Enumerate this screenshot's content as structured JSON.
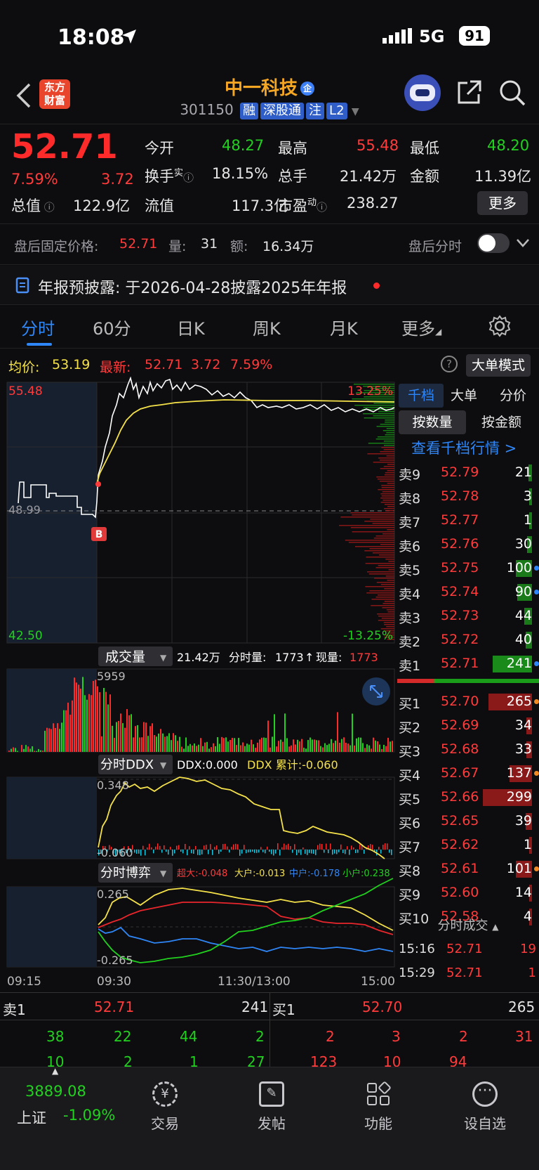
{
  "status_bar": {
    "time": "18:08",
    "network": "5G",
    "battery": "91"
  },
  "header": {
    "logo_text_1": "东方",
    "logo_text_2": "财富",
    "stock_name": "中一科技",
    "badge": "企",
    "code": "301150",
    "tags": [
      "融",
      "深股通",
      "注",
      "L2"
    ]
  },
  "quote": {
    "price": "52.71",
    "change_pct": "7.59%",
    "change": "3.72",
    "open_label": "今开",
    "open": "48.27",
    "high_label": "最高",
    "high": "55.48",
    "low_label": "最低",
    "low": "48.20",
    "turnover_label": "换手",
    "turnover_sup": "实",
    "turnover": "18.15%",
    "vol_label": "总手",
    "vol": "21.42万",
    "amount_label": "金额",
    "amount": "11.39亿",
    "mktcap_label": "总值",
    "mktcap": "122.9亿",
    "float_label": "流值",
    "float": "117.3亿",
    "pe_label": "市盈",
    "pe_sup": "动",
    "pe": "238.27",
    "more": "更多"
  },
  "after_hours": {
    "label": "盘后固定价格:",
    "price": "52.71",
    "qty_label": "量:",
    "qty": "31",
    "amt_label": "额:",
    "amt": "16.34万",
    "toggle_label": "盘后分时"
  },
  "notice": {
    "text": "年报预披露: 于2026-04-28披露2025年年报"
  },
  "tabs": [
    "分时",
    "60分",
    "日K",
    "周K",
    "月K",
    "更多"
  ],
  "info_line": {
    "avg_label": "均价:",
    "avg": "53.19",
    "latest_label": "最新:",
    "latest": "52.71",
    "chg": "3.72",
    "pct": "7.59%",
    "mode": "大单模式"
  },
  "chart_labels": {
    "ymax": "55.48",
    "ymin": "42.50",
    "ymid": "48.99",
    "pct_up": "13.25%",
    "pct_dn": "-13.25%",
    "b_marker": "B",
    "vol_title": "成交量",
    "vol_info_total": "21.42万",
    "vol_info_min_label": "分时量:",
    "vol_info_min": "1773",
    "vol_info_cur_label": "现量:",
    "vol_info_cur": "1773",
    "vol_max": "5959",
    "ddx_title": "分时DDX",
    "ddx_info": "DDX:0.000",
    "ddx_cum": "DDX 累计:-0.060",
    "ddx_top": "0.348",
    "ddx_bot": "-0.060",
    "game_title": "分时博弈",
    "g_super": "超大:-0.048",
    "g_big": "大户:-0.013",
    "g_mid": "中户:-0.178",
    "g_small": "小户:0.238",
    "g_top": "0.265",
    "g_bot": "-0.265",
    "t1": "09:15",
    "t2": "09:30",
    "t3": "11:30/13:00",
    "t4": "15:00"
  },
  "right_panel": {
    "tabs": [
      "千档",
      "大单",
      "分价"
    ],
    "sub": [
      "按数量",
      "按金额"
    ],
    "link": "查看千档行情 >"
  },
  "order_book": [
    {
      "label": "卖9",
      "price": "52.79",
      "vol": "21",
      "bar": 0.07,
      "color": "#1a7a1a",
      "dot": ""
    },
    {
      "label": "卖8",
      "price": "52.78",
      "vol": "3",
      "bar": 0.02,
      "color": "#1a7a1a",
      "dot": ""
    },
    {
      "label": "卖7",
      "price": "52.77",
      "vol": "1",
      "bar": 0.01,
      "color": "#1a7a1a",
      "dot": ""
    },
    {
      "label": "卖6",
      "price": "52.76",
      "vol": "30",
      "bar": 0.1,
      "color": "#1a7a1a",
      "dot": ""
    },
    {
      "label": "卖5",
      "price": "52.75",
      "vol": "100",
      "bar": 0.33,
      "color": "#1a7a1a",
      "dot": "#2f86f6"
    },
    {
      "label": "卖4",
      "price": "52.74",
      "vol": "90",
      "bar": 0.3,
      "color": "#1a7a1a",
      "dot": "#2f86f6"
    },
    {
      "label": "卖3",
      "price": "52.73",
      "vol": "44",
      "bar": 0.15,
      "color": "#1a7a1a",
      "dot": ""
    },
    {
      "label": "卖2",
      "price": "52.72",
      "vol": "40",
      "bar": 0.13,
      "color": "#1a7a1a",
      "dot": ""
    },
    {
      "label": "卖1",
      "price": "52.71",
      "vol": "241",
      "bar": 0.8,
      "color": "#1a8a1a",
      "dot": "#2f86f6"
    },
    {
      "label": "买1",
      "price": "52.70",
      "vol": "265",
      "bar": 0.88,
      "color": "#8a1a1a",
      "dot": "#f08a24"
    },
    {
      "label": "买2",
      "price": "52.69",
      "vol": "34",
      "bar": 0.11,
      "color": "#8a1a1a",
      "dot": ""
    },
    {
      "label": "买3",
      "price": "52.68",
      "vol": "33",
      "bar": 0.11,
      "color": "#8a1a1a",
      "dot": ""
    },
    {
      "label": "买4",
      "price": "52.67",
      "vol": "137",
      "bar": 0.45,
      "color": "#8a1a1a",
      "dot": "#f08a24"
    },
    {
      "label": "买5",
      "price": "52.66",
      "vol": "299",
      "bar": 1.0,
      "color": "#8a1a1a",
      "dot": ""
    },
    {
      "label": "买6",
      "price": "52.65",
      "vol": "39",
      "bar": 0.13,
      "color": "#8a1a1a",
      "dot": ""
    },
    {
      "label": "买7",
      "price": "52.62",
      "vol": "1",
      "bar": 0.01,
      "color": "#8a1a1a",
      "dot": ""
    },
    {
      "label": "买8",
      "price": "52.61",
      "vol": "101",
      "bar": 0.33,
      "color": "#8a1a1a",
      "dot": "#f08a24"
    },
    {
      "label": "买9",
      "price": "52.60",
      "vol": "14",
      "bar": 0.05,
      "color": "#8a1a1a",
      "dot": ""
    },
    {
      "label": "买10",
      "price": "52.58",
      "vol": "4",
      "bar": 0.02,
      "color": "#8a1a1a",
      "dot": ""
    }
  ],
  "trades": {
    "title": "分时成交",
    "rows": [
      {
        "time": "15:16",
        "price": "52.71",
        "vol": "19"
      },
      {
        "time": "15:29",
        "price": "52.71",
        "vol": "1"
      }
    ]
  },
  "bottom_book": {
    "sell_label": "卖1",
    "sell_price": "52.71",
    "sell_vol": "241",
    "buy_label": "买1",
    "buy_price": "52.70",
    "buy_vol": "265",
    "left_row1": [
      "38",
      "22",
      "44",
      "2"
    ],
    "left_row2": [
      "10",
      "2",
      "1",
      "27"
    ],
    "right_row1": [
      "2",
      "3",
      "2",
      "31"
    ],
    "right_row2": [
      "123",
      "10",
      "94"
    ]
  },
  "nav": {
    "index_value": "3889.08",
    "index_name": "上证",
    "index_pct": "-1.09%",
    "items": [
      "交易",
      "发帖",
      "功能",
      "设自选"
    ]
  }
}
